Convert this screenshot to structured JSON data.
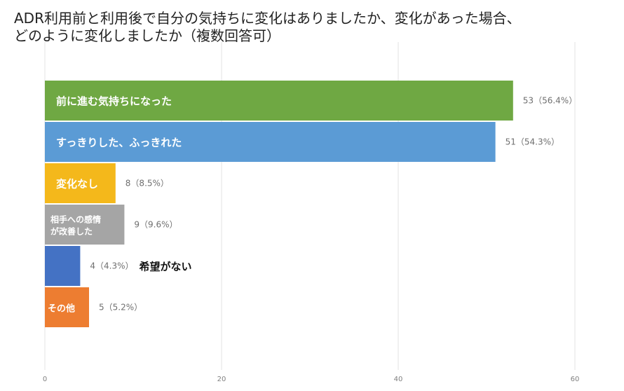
{
  "title_lines": [
    "ADR利用前と利用後で自分の気持ちに変化はありましたか、変化があった場合、",
    "どのように変化しましたか（複数回答可）"
  ],
  "chart_data": {
    "type": "bar",
    "orientation": "horizontal",
    "title": "ADR利用前と利用後で自分の気持ちに変化はありましたか、変化があった場合、どのように変化しましたか（複数回答可）",
    "categories": [
      "前に進む気持ちになった",
      "すっきりした、ふっきれた",
      "変化なし",
      "相手への感情が改善した",
      "希望がない",
      "その他"
    ],
    "category_lines": [
      [
        "前に進む気持ちになった"
      ],
      [
        "すっきりした、ふっきれた"
      ],
      [
        "変化なし"
      ],
      [
        "相手への感情",
        "が改善した"
      ],
      [
        "希望がない"
      ],
      [
        "その他"
      ]
    ],
    "values": [
      53,
      51,
      8,
      9,
      4,
      5
    ],
    "value_labels": [
      "53（56.4%）",
      "51（54.3%）",
      "8（8.5%）",
      "9（9.6%）",
      "4（4.3%）",
      "5（5.2%）"
    ],
    "colors": [
      "#6fa843",
      "#5b9bd5",
      "#f4b81b",
      "#a5a5a5",
      "#4472c4",
      "#ed7d31"
    ],
    "category_label_outside": [
      false,
      false,
      false,
      false,
      true,
      false
    ],
    "xlim": [
      0,
      60
    ],
    "x_ticks": [
      0,
      20,
      40,
      60
    ],
    "x_tick_labels": [
      "0",
      "20",
      "40",
      "60"
    ],
    "xlabel": "",
    "ylabel": "",
    "grid": true,
    "legend": "none"
  }
}
